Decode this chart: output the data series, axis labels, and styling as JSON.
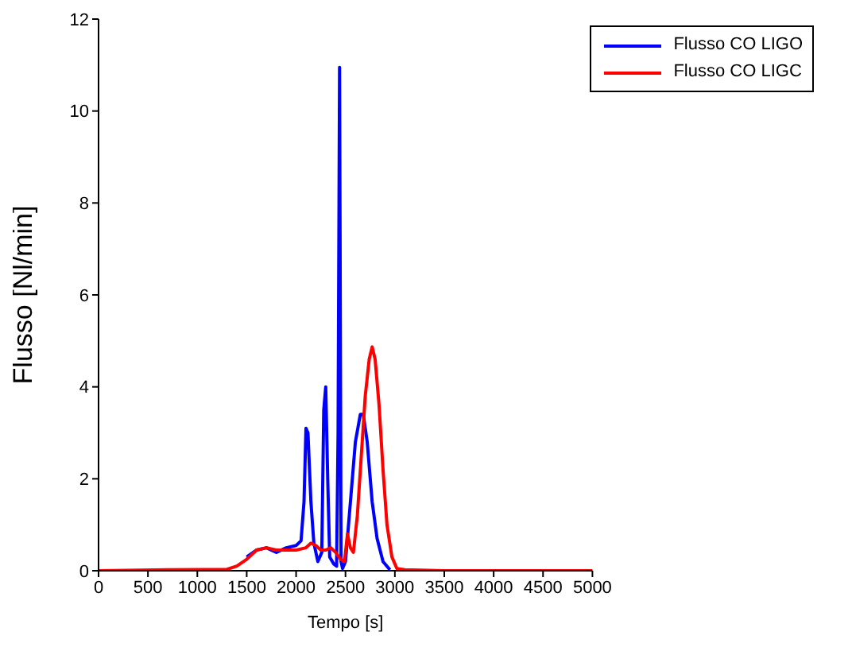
{
  "chart_data": {
    "type": "line",
    "xlabel": "Tempo [s]",
    "ylabel": "Flusso [Nl/min]",
    "xlim": [
      0,
      5000
    ],
    "ylim": [
      0,
      12
    ],
    "xticks": [
      0,
      500,
      1000,
      1500,
      2000,
      2500,
      3000,
      3500,
      4000,
      4500,
      5000
    ],
    "yticks": [
      0,
      2,
      4,
      6,
      8,
      10,
      12
    ],
    "legend": "top right",
    "grid": false,
    "series": [
      {
        "name": "Flusso CO LIGO",
        "color": "#0000ff",
        "x": [
          1500,
          1600,
          1700,
          1800,
          1900,
          2000,
          2050,
          2080,
          2100,
          2120,
          2150,
          2180,
          2220,
          2260,
          2280,
          2300,
          2320,
          2340,
          2380,
          2410,
          2425,
          2440,
          2455,
          2470,
          2500,
          2550,
          2600,
          2650,
          2680,
          2720,
          2770,
          2820,
          2880,
          2950
        ],
        "values": [
          0.3,
          0.45,
          0.5,
          0.4,
          0.5,
          0.55,
          0.65,
          1.5,
          3.1,
          3.0,
          1.5,
          0.6,
          0.2,
          0.4,
          3.5,
          4.0,
          2.0,
          0.3,
          0.15,
          0.1,
          3.0,
          10.95,
          0.2,
          0.05,
          0.2,
          1.5,
          2.8,
          3.4,
          3.4,
          2.8,
          1.5,
          0.7,
          0.2,
          0.02
        ]
      },
      {
        "name": "Flusso CO LIGC",
        "color": "#ff0000",
        "x": [
          0,
          700,
          1300,
          1400,
          1500,
          1600,
          1700,
          1800,
          1900,
          2000,
          2100,
          2150,
          2200,
          2250,
          2300,
          2350,
          2400,
          2450,
          2490,
          2520,
          2550,
          2580,
          2620,
          2660,
          2700,
          2740,
          2770,
          2800,
          2840,
          2880,
          2920,
          2970,
          3020,
          3100,
          3500,
          5000
        ],
        "values": [
          0,
          0.02,
          0.03,
          0.1,
          0.25,
          0.45,
          0.5,
          0.45,
          0.45,
          0.45,
          0.5,
          0.6,
          0.55,
          0.45,
          0.45,
          0.5,
          0.4,
          0.25,
          0.2,
          0.8,
          0.5,
          0.4,
          1.2,
          2.5,
          3.8,
          4.6,
          4.87,
          4.6,
          3.6,
          2.2,
          1.0,
          0.3,
          0.05,
          0.02,
          0,
          0
        ]
      }
    ]
  }
}
